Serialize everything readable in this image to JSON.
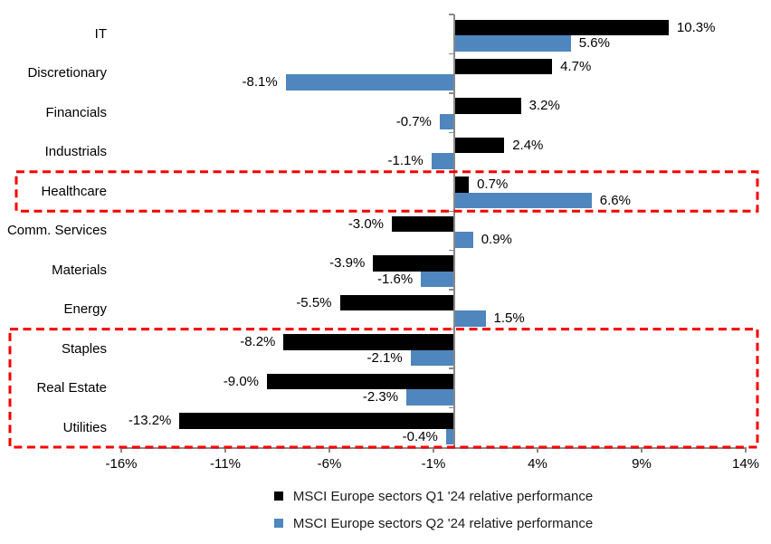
{
  "chart_data": {
    "type": "bar",
    "orientation": "horizontal",
    "title": "",
    "categories": [
      "IT",
      "Discretionary",
      "Financials",
      "Industrials",
      "Healthcare",
      "Comm. Services",
      "Materials",
      "Energy",
      "Staples",
      "Real Estate",
      "Utilities"
    ],
    "series": [
      {
        "name": "MSCI Europe sectors Q1 '24 relative performance",
        "color": "#000000",
        "values": [
          10.3,
          4.7,
          3.2,
          2.4,
          0.7,
          -3.0,
          -3.9,
          -5.5,
          -8.2,
          -9.0,
          -13.2
        ],
        "labels": [
          "10.3%",
          "4.7%",
          "3.2%",
          "2.4%",
          "0.7%",
          "-3.0%",
          "-3.9%",
          "-5.5%",
          "-8.2%",
          "-9.0%",
          "-13.2%"
        ]
      },
      {
        "name": "MSCI Europe sectors Q2 '24 relative performance",
        "color": "#4F86BD",
        "values": [
          5.6,
          -8.1,
          -0.7,
          -1.1,
          6.6,
          0.9,
          -1.6,
          1.5,
          -2.1,
          -2.3,
          -0.4
        ],
        "labels": [
          "5.6%",
          "-8.1%",
          "-0.7%",
          "-1.1%",
          "6.6%",
          "0.9%",
          "-1.6%",
          "1.5%",
          "-2.1%",
          "-2.3%",
          "-0.4%"
        ]
      }
    ],
    "xlim": [
      -16,
      14
    ],
    "x_ticks": [
      "-16%",
      "-11%",
      "-6%",
      "-1%",
      "4%",
      "9%",
      "14%"
    ],
    "x_tick_values": [
      -16,
      -11,
      -6,
      -1,
      4,
      9,
      14
    ],
    "grid": false,
    "legend_position": "bottom",
    "axis_color": "#898989",
    "highlight_boxes": [
      {
        "categories": [
          "Healthcare"
        ],
        "color": "#F80000",
        "style": "dashed"
      },
      {
        "categories": [
          "Staples",
          "Real Estate",
          "Utilities"
        ],
        "color": "#F80000",
        "style": "dashed"
      }
    ]
  }
}
